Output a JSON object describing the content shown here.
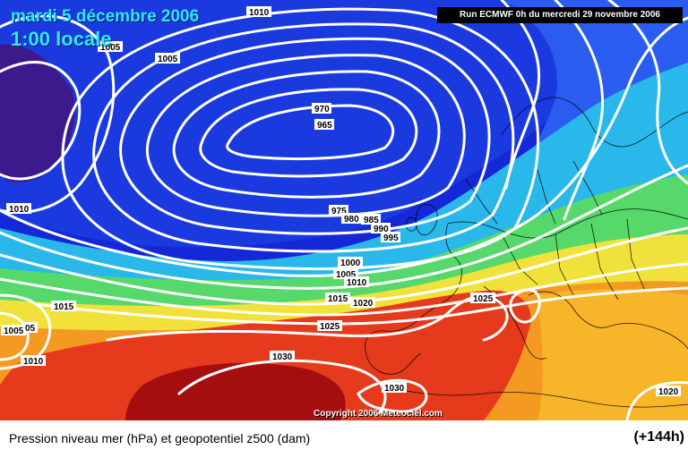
{
  "map": {
    "date_line": "mardi 5 décembre 2006",
    "time_line": "1:00 locale",
    "run_info": "Run ECMWF 0h du mercredi 29 novembre 2006",
    "copyright": "Copyright 2006 Meteociel.com",
    "low_center_label": "965",
    "isobar_labels": [
      "1010",
      "1005",
      "1005",
      "970",
      "965",
      "1010",
      "975",
      "980",
      "985",
      "990",
      "995",
      "1000",
      "1005",
      "1010",
      "1015",
      "1020",
      "1015",
      "1025",
      "1025",
      "1005",
      "05",
      "1010",
      "1030",
      "1030",
      "1020"
    ],
    "colors": {
      "deep_low": "#3d1a8c",
      "low": "#1428d8",
      "mid_blue": "#2a62f0",
      "cyan": "#26c8e8",
      "green": "#52d66a",
      "yellow": "#f2e43a",
      "orange": "#f5a020",
      "red": "#e8301a",
      "dark_red": "#a80c0c",
      "isobar": "#ffffff",
      "title_text": "#30e8ff"
    }
  },
  "footer": {
    "caption": "Pression niveau mer (hPa) et geopotentiel z500 (dam)",
    "forecast_hour": "(+144h)"
  }
}
